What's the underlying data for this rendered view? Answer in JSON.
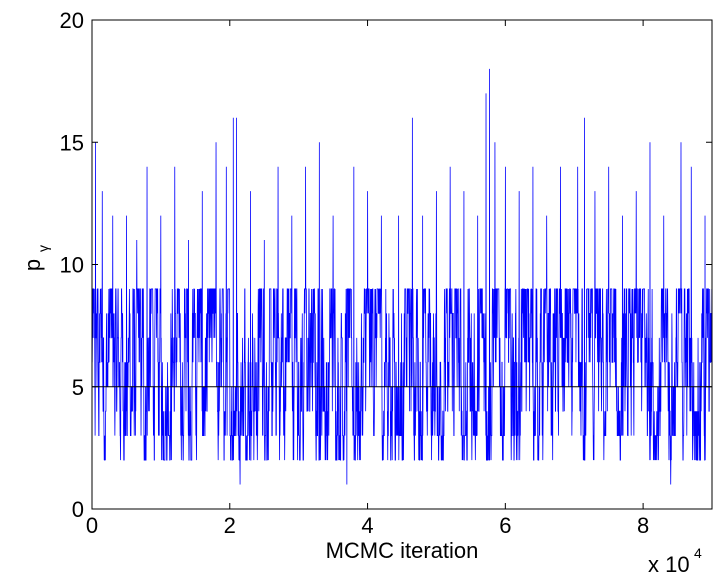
{
  "chart_data": {
    "type": "line",
    "title": "",
    "xlabel": "MCMC iteration",
    "ylabel_base": "p",
    "ylabel_sub": "γ",
    "x_multiplier_base": "x 10",
    "x_multiplier_exp": "4",
    "xlim": [
      0,
      90000
    ],
    "ylim": [
      0,
      20
    ],
    "xticks": [
      0,
      20000,
      40000,
      60000,
      80000
    ],
    "xtick_labels": [
      "0",
      "2",
      "4",
      "6",
      "8"
    ],
    "yticks": [
      0,
      5,
      10,
      15,
      20
    ],
    "ytick_labels": [
      "0",
      "5",
      "10",
      "15",
      "20"
    ],
    "grid": false,
    "series": [
      {
        "color": "#0000ff",
        "band_min": 2,
        "band_max": 9,
        "mean_level": 6,
        "spikes": [
          {
            "x": 500,
            "y": 15
          },
          {
            "x": 1500,
            "y": 13
          },
          {
            "x": 3000,
            "y": 12
          },
          {
            "x": 5000,
            "y": 12
          },
          {
            "x": 6500,
            "y": 11
          },
          {
            "x": 8000,
            "y": 14
          },
          {
            "x": 10000,
            "y": 12
          },
          {
            "x": 12000,
            "y": 14
          },
          {
            "x": 14000,
            "y": 11
          },
          {
            "x": 16000,
            "y": 13
          },
          {
            "x": 18000,
            "y": 15
          },
          {
            "x": 19500,
            "y": 14
          },
          {
            "x": 20500,
            "y": 16
          },
          {
            "x": 21000,
            "y": 16
          },
          {
            "x": 23000,
            "y": 13
          },
          {
            "x": 25000,
            "y": 11
          },
          {
            "x": 27000,
            "y": 14
          },
          {
            "x": 29000,
            "y": 12
          },
          {
            "x": 31000,
            "y": 14
          },
          {
            "x": 33000,
            "y": 15
          },
          {
            "x": 35000,
            "y": 12
          },
          {
            "x": 38000,
            "y": 14
          },
          {
            "x": 40000,
            "y": 13
          },
          {
            "x": 42000,
            "y": 12
          },
          {
            "x": 44500,
            "y": 12
          },
          {
            "x": 46500,
            "y": 16
          },
          {
            "x": 48000,
            "y": 12
          },
          {
            "x": 50000,
            "y": 13
          },
          {
            "x": 52000,
            "y": 14
          },
          {
            "x": 54000,
            "y": 13
          },
          {
            "x": 56000,
            "y": 12
          },
          {
            "x": 57200,
            "y": 17
          },
          {
            "x": 57700,
            "y": 18
          },
          {
            "x": 58500,
            "y": 15
          },
          {
            "x": 60000,
            "y": 14
          },
          {
            "x": 62000,
            "y": 13
          },
          {
            "x": 64000,
            "y": 14
          },
          {
            "x": 66000,
            "y": 12
          },
          {
            "x": 68000,
            "y": 14
          },
          {
            "x": 70500,
            "y": 14
          },
          {
            "x": 71500,
            "y": 16
          },
          {
            "x": 73000,
            "y": 13
          },
          {
            "x": 75000,
            "y": 14
          },
          {
            "x": 77000,
            "y": 12
          },
          {
            "x": 79000,
            "y": 13
          },
          {
            "x": 81000,
            "y": 15
          },
          {
            "x": 83000,
            "y": 12
          },
          {
            "x": 85500,
            "y": 15
          },
          {
            "x": 87000,
            "y": 14
          },
          {
            "x": 89000,
            "y": 12
          }
        ],
        "dips": [
          {
            "x": 21500,
            "y": 1
          },
          {
            "x": 37000,
            "y": 1
          },
          {
            "x": 84000,
            "y": 1
          }
        ]
      }
    ],
    "reference_lines": [
      {
        "y": 5,
        "color": "#000000"
      }
    ]
  }
}
